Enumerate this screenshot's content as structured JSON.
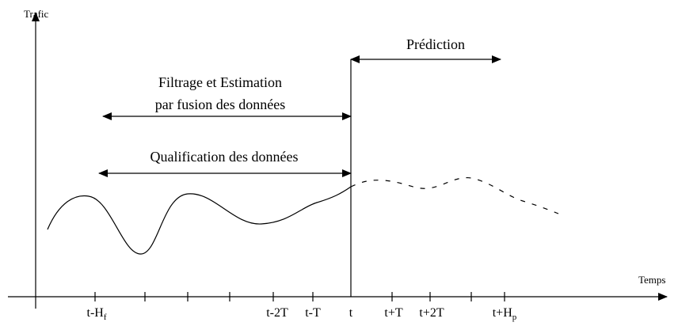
{
  "axes": {
    "y_label": "Trafic",
    "x_label": "Temps"
  },
  "annotations": {
    "prediction": "Prédiction",
    "filtering": [
      "Filtrage et Estimation",
      "par fusion des données"
    ],
    "qualification": "Qualification des données"
  },
  "ticks": [
    {
      "text": "t-H",
      "sub": "f"
    },
    {
      "text": "t-2T"
    },
    {
      "text": "t-T"
    },
    {
      "text": "t"
    },
    {
      "text": "t+T"
    },
    {
      "text": "t+2T"
    },
    {
      "text": "t+H",
      "sub": "p"
    }
  ]
}
